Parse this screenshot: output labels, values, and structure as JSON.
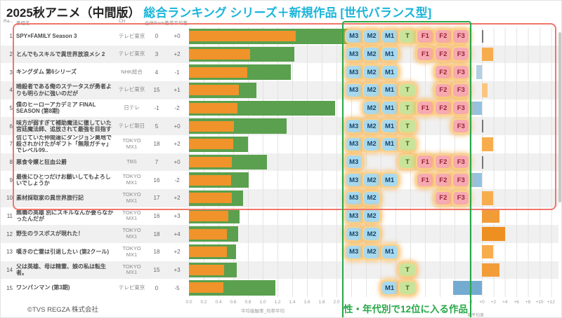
{
  "header": {
    "title_main": "2025秋アニメ（中間版）",
    "title_accent": "総合ランキング シリーズ＋新規作品 [世代バランス型]"
  },
  "table_columns": {
    "rank": "Ra...",
    "title": "番組名",
    "channel": "CH",
    "rank_diff": "全体Rank差",
    "band_diff": "帯平均差"
  },
  "demographics": [
    "M3",
    "M2",
    "M1",
    "T",
    "F1",
    "F2",
    "F3"
  ],
  "annotation": {
    "text": "性・年代別で12位に入る作品"
  },
  "footer": {
    "copyright": "©TVS REGZA 株式会社"
  },
  "colors": {
    "accent": "#1ab5da",
    "bar_orange": "#f0932a",
    "bar_green": "#5aa04e",
    "badge_m": "#a9d9ee",
    "badge_t": "#c9e39b",
    "badge_f": "#f6aab2",
    "box_red": "#f0766b",
    "box_green": "#27a747",
    "stripe": "#f0f0f0",
    "grid": "#e3e3e3"
  },
  "diff_colors": {
    "0": "#888888",
    "1": "#f9c57f",
    "2": "#f7ad4e",
    "3": "#f29c38",
    "4": "#ee8f22",
    "-1": "#b3d0e5",
    "-2": "#95c2de",
    "-5": "#74abd1"
  },
  "chart_data": [
    {
      "type": "bar",
      "orientation": "horizontal",
      "title": "平均接触率_均帯平均",
      "xlabel": "平均接触率_均帯平均",
      "xticks": [
        "0.0",
        "0.2",
        "0.4",
        "0.6",
        "0.8",
        "1.0",
        "1.2",
        "1.4",
        "1.6",
        "1.8",
        "2.0"
      ],
      "xlim": [
        0,
        3.8
      ],
      "grid": true,
      "categories": [
        "SPY×FAMILY Season 3",
        "とんでもスキルで異世界放浪メシ 2",
        "キングダム 第6シリーズ",
        "暗殺者である俺のステータスが勇者よりも明らかに強いのだが",
        "僕のヒーローアカデミア FINAL SEASON (第8期)",
        "味方が弱すぎて補助魔法に徹していた宮廷魔法師、追放されて最強を目指す",
        "信じていた仲間達にダンジョン奥地で殺されかけたがギフト「無限ガチャ」でレベル99..",
        "悪食令嬢と狂血公爵",
        "最後にひとつだけお願いしてもよろしいでしょうか",
        "素材採取家の異世界旅行記",
        "無職の英雄 別にスキルなんか要らなかったんだが",
        "野生のラスボスが現れた！",
        "嘆きの亡霊は引退したい (第2クール)",
        "父は英雄、母は精霊、娘の私は転生者。",
        "ワンパンマン (第3期)"
      ],
      "series": [
        {
          "name": "平均接触率",
          "color": "#f0932a",
          "values": [
            1.45,
            0.83,
            0.79,
            0.68,
            0.66,
            0.61,
            0.6,
            0.58,
            0.57,
            0.58,
            0.53,
            0.51,
            0.51,
            0.48,
            0.47
          ]
        },
        {
          "name": "均帯平均",
          "color": "#5aa04e",
          "values": [
            2.2,
            1.43,
            1.38,
            0.91,
            1.98,
            1.32,
            0.8,
            1.06,
            0.81,
            0.73,
            0.69,
            0.67,
            0.64,
            0.65,
            1.17
          ]
        }
      ]
    },
    {
      "type": "bar",
      "orientation": "horizontal",
      "title": "帯平均差",
      "xlabel": "帯平均差",
      "xticks": [
        "-2",
        "+0",
        "+2",
        "+4",
        "+6",
        "+8",
        "+10",
        "+12"
      ],
      "xlim": [
        -4,
        13
      ],
      "grid": true,
      "values": [
        0,
        2,
        -1,
        1,
        -2,
        0,
        2,
        0,
        -2,
        2,
        3,
        4,
        2,
        3,
        -5
      ]
    }
  ],
  "rows": [
    {
      "rank": "1",
      "title": "SPY×FAMILY Season 3",
      "channel": "テレビ東京",
      "rank_diff": "0",
      "band_diff": "+0",
      "badges": [
        1,
        1,
        1,
        1,
        1,
        1,
        1
      ]
    },
    {
      "rank": "2",
      "title": "とんでもスキルで異世界放浪メシ 2",
      "channel": "テレビ東京",
      "rank_diff": "3",
      "band_diff": "+2",
      "badges": [
        1,
        1,
        1,
        0,
        1,
        1,
        1
      ]
    },
    {
      "rank": "3",
      "title": "キングダム 第6シリーズ",
      "channel": "NHK総合",
      "rank_diff": "4",
      "band_diff": "-1",
      "badges": [
        1,
        1,
        1,
        0,
        0,
        1,
        1
      ]
    },
    {
      "rank": "4",
      "title": "暗殺者である俺のステータスが勇者よりも明らかに強いのだが",
      "channel": "テレビ東京",
      "rank_diff": "15",
      "band_diff": "+1",
      "badges": [
        1,
        1,
        1,
        1,
        0,
        1,
        1
      ]
    },
    {
      "rank": "5",
      "title": "僕のヒーローアカデミア FINAL SEASON (第8期)",
      "channel": "日テレ",
      "rank_diff": "-1",
      "band_diff": "-2",
      "badges": [
        0,
        1,
        1,
        1,
        1,
        1,
        1
      ]
    },
    {
      "rank": "6",
      "title": "味方が弱すぎて補助魔法に徹していた宮廷魔法師、追放されて最強を目指す",
      "channel": "テレビ朝日",
      "rank_diff": "5",
      "band_diff": "+0",
      "badges": [
        1,
        1,
        1,
        1,
        0,
        0,
        1
      ]
    },
    {
      "rank": "7",
      "title": "信じていた仲間達にダンジョン奥地で殺されかけたがギフト「無限ガチャ」でレベル99..",
      "channel": "TOKYO MX1",
      "rank_diff": "18",
      "band_diff": "+2",
      "badges": [
        1,
        1,
        1,
        1,
        0,
        0,
        0
      ]
    },
    {
      "rank": "8",
      "title": "悪食令嬢と狂血公爵",
      "channel": "TBS",
      "rank_diff": "7",
      "band_diff": "+0",
      "badges": [
        1,
        0,
        0,
        1,
        1,
        1,
        1
      ]
    },
    {
      "rank": "9",
      "title": "最後にひとつだけお願いしてもよろしいでしょうか",
      "channel": "TOKYO MX1",
      "rank_diff": "16",
      "band_diff": "-2",
      "badges": [
        1,
        1,
        1,
        0,
        1,
        1,
        1
      ]
    },
    {
      "rank": "10",
      "title": "素材採取家の異世界旅行記",
      "channel": "TOKYO MX1",
      "rank_diff": "17",
      "band_diff": "+2",
      "badges": [
        1,
        1,
        0,
        0,
        0,
        1,
        1
      ]
    },
    {
      "rank": "11",
      "title": "無職の英雄 別にスキルなんか要らなかったんだが",
      "channel": "TOKYO MX1",
      "rank_diff": "16",
      "band_diff": "+3",
      "badges": [
        1,
        1,
        0,
        0,
        0,
        0,
        0
      ]
    },
    {
      "rank": "12",
      "title": "野生のラスボスが現れた！",
      "channel": "TOKYO MX1",
      "rank_diff": "18",
      "band_diff": "+4",
      "badges": [
        1,
        1,
        0,
        0,
        0,
        0,
        0
      ]
    },
    {
      "rank": "13",
      "title": "嘆きの亡霊は引退したい (第2クール)",
      "channel": "TOKYO MX1",
      "rank_diff": "18",
      "band_diff": "+2",
      "badges": [
        1,
        1,
        1,
        0,
        0,
        0,
        0
      ]
    },
    {
      "rank": "14",
      "title": "父は英雄、母は精霊、娘の私は転生者。",
      "channel": "TOKYO MX1",
      "rank_diff": "15",
      "band_diff": "+3",
      "badges": [
        0,
        0,
        0,
        1,
        0,
        0,
        0
      ]
    },
    {
      "rank": "15",
      "title": "ワンパンマン (第3期)",
      "channel": "テレビ東京",
      "rank_diff": "0",
      "band_diff": "-5",
      "badges": [
        0,
        0,
        1,
        1,
        0,
        0,
        0
      ]
    }
  ]
}
